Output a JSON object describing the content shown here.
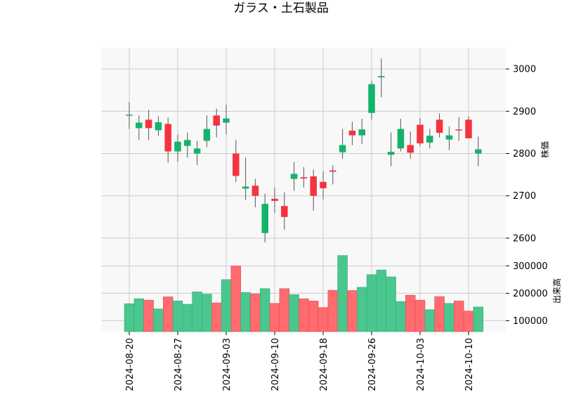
{
  "chart_data": [
    {
      "type": "candlestick",
      "title": "ガラス・土石製品",
      "ylabel": "株価",
      "ylim": [
        2570,
        3050
      ],
      "yticks": [
        2600,
        2700,
        2800,
        2900,
        3000
      ],
      "grid": true,
      "up_color": "#13b36b",
      "down_color": "#f5333f",
      "candles": [
        {
          "date": "2024-08-20",
          "open": 2890,
          "high": 2922,
          "low": 2858,
          "close": 2892
        },
        {
          "date": "2024-08-21",
          "open": 2860,
          "high": 2890,
          "low": 2832,
          "close": 2873
        },
        {
          "date": "2024-08-22",
          "open": 2880,
          "high": 2903,
          "low": 2832,
          "close": 2860
        },
        {
          "date": "2024-08-23",
          "open": 2855,
          "high": 2888,
          "low": 2842,
          "close": 2874
        },
        {
          "date": "2024-08-26",
          "open": 2870,
          "high": 2885,
          "low": 2778,
          "close": 2805
        },
        {
          "date": "2024-08-27",
          "open": 2805,
          "high": 2845,
          "low": 2780,
          "close": 2828
        },
        {
          "date": "2024-08-28",
          "open": 2818,
          "high": 2850,
          "low": 2790,
          "close": 2832
        },
        {
          "date": "2024-08-29",
          "open": 2800,
          "high": 2830,
          "low": 2773,
          "close": 2812
        },
        {
          "date": "2024-08-30",
          "open": 2830,
          "high": 2890,
          "low": 2815,
          "close": 2858
        },
        {
          "date": "2024-09-02",
          "open": 2890,
          "high": 2906,
          "low": 2838,
          "close": 2866
        },
        {
          "date": "2024-09-03",
          "open": 2873,
          "high": 2915,
          "low": 2845,
          "close": 2883
        },
        {
          "date": "2024-09-04",
          "open": 2800,
          "high": 2832,
          "low": 2733,
          "close": 2747
        },
        {
          "date": "2024-09-05",
          "open": 2717,
          "high": 2790,
          "low": 2690,
          "close": 2722
        },
        {
          "date": "2024-09-06",
          "open": 2724,
          "high": 2740,
          "low": 2673,
          "close": 2700
        },
        {
          "date": "2024-09-09",
          "open": 2612,
          "high": 2705,
          "low": 2590,
          "close": 2681
        },
        {
          "date": "2024-09-10",
          "open": 2693,
          "high": 2720,
          "low": 2660,
          "close": 2688
        },
        {
          "date": "2024-09-11",
          "open": 2676,
          "high": 2708,
          "low": 2620,
          "close": 2650
        },
        {
          "date": "2024-09-12",
          "open": 2740,
          "high": 2780,
          "low": 2712,
          "close": 2752
        },
        {
          "date": "2024-09-13",
          "open": 2744,
          "high": 2768,
          "low": 2720,
          "close": 2741
        },
        {
          "date": "2024-09-17",
          "open": 2746,
          "high": 2762,
          "low": 2665,
          "close": 2700
        },
        {
          "date": "2024-09-18",
          "open": 2733,
          "high": 2758,
          "low": 2692,
          "close": 2718
        },
        {
          "date": "2024-09-19",
          "open": 2760,
          "high": 2772,
          "low": 2727,
          "close": 2757
        },
        {
          "date": "2024-09-20",
          "open": 2803,
          "high": 2858,
          "low": 2788,
          "close": 2820
        },
        {
          "date": "2024-09-24",
          "open": 2854,
          "high": 2875,
          "low": 2820,
          "close": 2843
        },
        {
          "date": "2024-09-25",
          "open": 2843,
          "high": 2882,
          "low": 2822,
          "close": 2857
        },
        {
          "date": "2024-09-26",
          "open": 2896,
          "high": 2972,
          "low": 2880,
          "close": 2964
        },
        {
          "date": "2024-09-27",
          "open": 2980,
          "high": 3025,
          "low": 2933,
          "close": 2983
        },
        {
          "date": "2024-09-30",
          "open": 2797,
          "high": 2850,
          "low": 2770,
          "close": 2804
        },
        {
          "date": "2024-10-01",
          "open": 2812,
          "high": 2882,
          "low": 2805,
          "close": 2858
        },
        {
          "date": "2024-10-02",
          "open": 2820,
          "high": 2852,
          "low": 2788,
          "close": 2802
        },
        {
          "date": "2024-10-03",
          "open": 2868,
          "high": 2884,
          "low": 2817,
          "close": 2824
        },
        {
          "date": "2024-10-04",
          "open": 2826,
          "high": 2858,
          "low": 2812,
          "close": 2842
        },
        {
          "date": "2024-10-07",
          "open": 2880,
          "high": 2895,
          "low": 2838,
          "close": 2849
        },
        {
          "date": "2024-10-08",
          "open": 2833,
          "high": 2864,
          "low": 2808,
          "close": 2843
        },
        {
          "date": "2024-10-09",
          "open": 2857,
          "high": 2886,
          "low": 2830,
          "close": 2855
        },
        {
          "date": "2024-10-10",
          "open": 2880,
          "high": 2888,
          "low": 2836,
          "close": 2836
        },
        {
          "date": "2024-10-11",
          "open": 2800,
          "high": 2840,
          "low": 2770,
          "close": 2810
        }
      ]
    },
    {
      "type": "bar",
      "ylabel": "出来高",
      "ylim": [
        60000,
        355000
      ],
      "yticks": [
        100000,
        200000,
        300000
      ],
      "grid": true,
      "volumes": [
        162000,
        180000,
        175000,
        143000,
        187000,
        172000,
        160000,
        205000,
        197000,
        165000,
        250000,
        300000,
        203000,
        198000,
        217000,
        163000,
        217000,
        195000,
        180000,
        172000,
        148000,
        211000,
        338000,
        210000,
        222000,
        268000,
        285000,
        260000,
        170000,
        193000,
        175000,
        140000,
        188000,
        163000,
        172000,
        135000,
        150000
      ]
    }
  ],
  "xticks": [
    "2024-08-20",
    "2024-08-27",
    "2024-09-03",
    "2024-09-10",
    "2024-09-18",
    "2024-09-26",
    "2024-10-03",
    "2024-10-10"
  ]
}
